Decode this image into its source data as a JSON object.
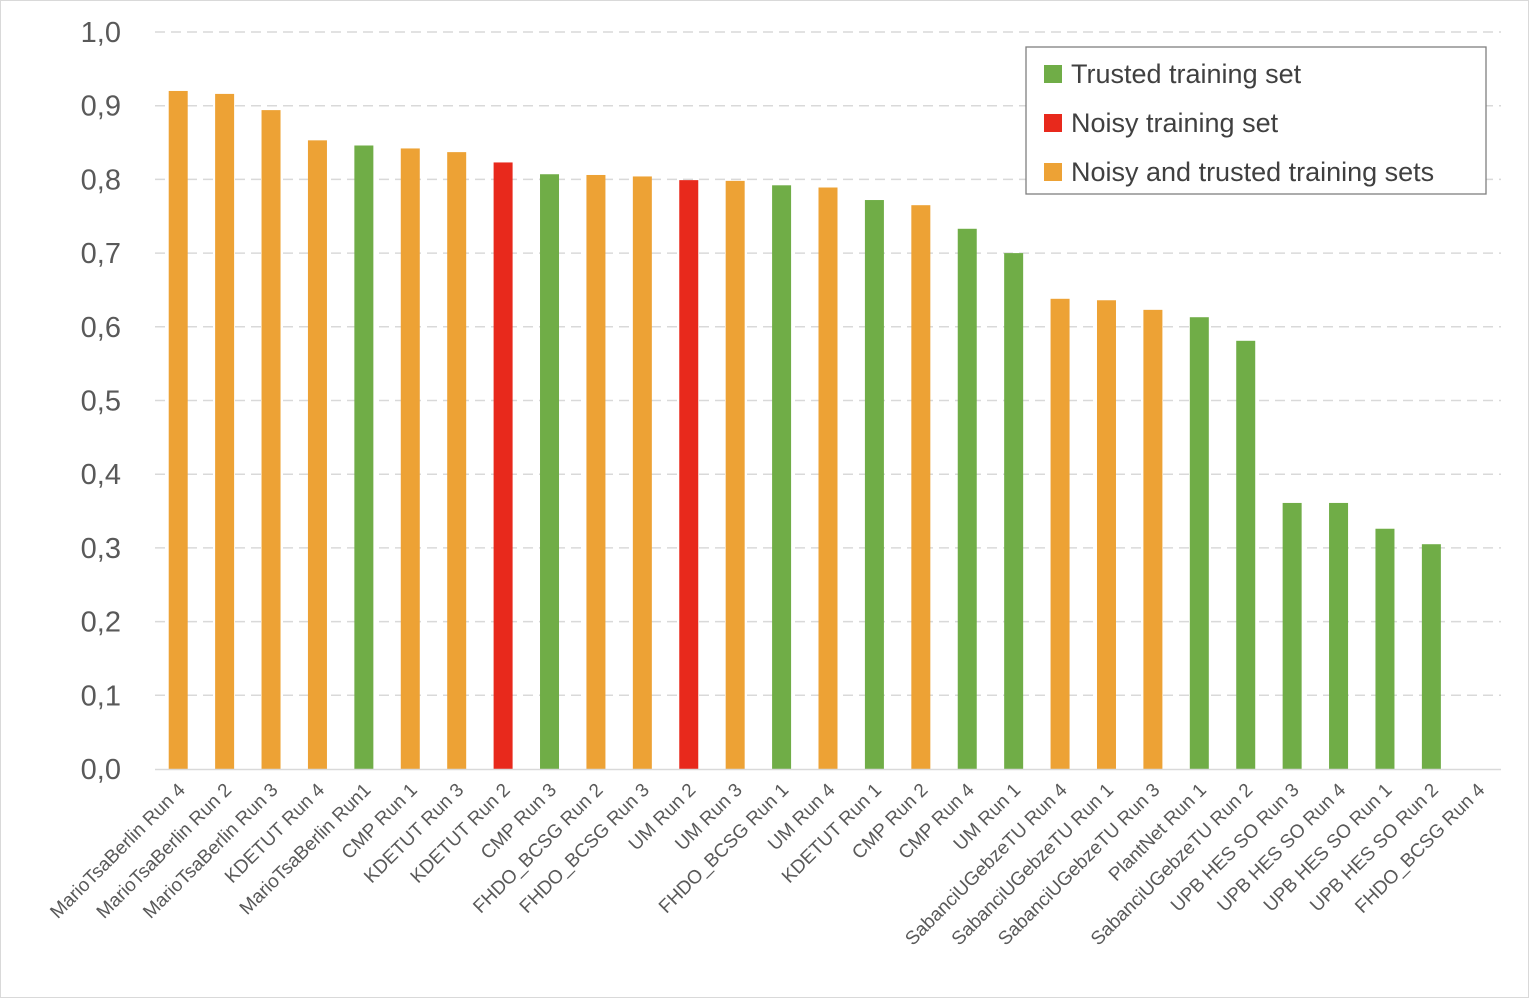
{
  "chart_data": {
    "type": "bar",
    "title": "",
    "xlabel": "",
    "ylabel": "",
    "ylim": [
      0,
      1
    ],
    "yticks": [
      "0,0",
      "0,1",
      "0,2",
      "0,3",
      "0,4",
      "0,5",
      "0,6",
      "0,7",
      "0,8",
      "0,9",
      "1,0"
    ],
    "grid": true,
    "legend_position": "top-right",
    "legend": [
      {
        "label": "Trusted training set",
        "color": "#70ad47"
      },
      {
        "label": "Noisy training set",
        "color": "#e8291c"
      },
      {
        "label": "Noisy and trusted training sets",
        "color": "#eda235"
      }
    ],
    "categories": [
      "MarioTsaBerlin Run 4",
      "MarioTsaBerlin Run 2",
      "MarioTsaBerlin Run 3",
      "KDETUT Run 4",
      "MarioTsaBerlin Run1",
      "CMP Run 1",
      "KDETUT Run 3",
      "KDETUT Run 2",
      "CMP Run 3",
      "FHDO_BCSG Run 2",
      "FHDO_BCSG Run 3",
      "UM Run 2",
      "UM Run 3",
      "FHDO_BCSG Run 1",
      "UM Run 4",
      "KDETUT Run 1",
      "CMP Run 2",
      "CMP Run 4",
      "UM Run 1",
      "SabanciUGebzeTU Run 4",
      "SabanciUGebzeTU Run 1",
      "SabanciUGebzeTU Run 3",
      "PlantNet Run 1",
      "SabanciUGebzeTU Run 2",
      "UPB HES SO Run 3",
      "UPB HES SO Run 4",
      "UPB HES SO Run 1",
      "UPB HES SO Run 2",
      "FHDO_BCSG Run 4"
    ],
    "values": [
      0.92,
      0.916,
      0.894,
      0.853,
      0.846,
      0.842,
      0.837,
      0.823,
      0.807,
      0.806,
      0.804,
      0.799,
      0.798,
      0.792,
      0.789,
      0.772,
      0.765,
      0.733,
      0.7,
      0.638,
      0.636,
      0.623,
      0.613,
      0.581,
      0.361,
      0.361,
      0.326,
      0.305,
      0.0
    ],
    "groups": [
      "Noisy and trusted training sets",
      "Noisy and trusted training sets",
      "Noisy and trusted training sets",
      "Noisy and trusted training sets",
      "Trusted training set",
      "Noisy and trusted training sets",
      "Noisy and trusted training sets",
      "Noisy training set",
      "Trusted training set",
      "Noisy and trusted training sets",
      "Noisy and trusted training sets",
      "Noisy training set",
      "Noisy and trusted training sets",
      "Trusted training set",
      "Noisy and trusted training sets",
      "Trusted training set",
      "Noisy and trusted training sets",
      "Trusted training set",
      "Trusted training set",
      "Noisy and trusted training sets",
      "Noisy and trusted training sets",
      "Noisy and trusted training sets",
      "Trusted training set",
      "Trusted training set",
      "Trusted training set",
      "Trusted training set",
      "Trusted training set",
      "Trusted training set",
      "Trusted training set"
    ]
  }
}
